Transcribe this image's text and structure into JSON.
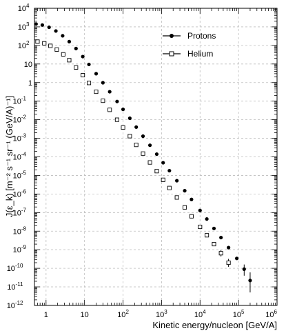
{
  "chart_data": {
    "type": "scatter",
    "title": "",
    "xlabel": "Kinetic energy/nucleon [GeV/A]",
    "ylabel": "J(ε_k) [m⁻² s⁻¹ sr⁻¹ (GeV/A)⁻¹]",
    "xscale": "log",
    "yscale": "log",
    "xlim": [
      0.5,
      1000000
    ],
    "ylim": [
      1e-12,
      10000
    ],
    "grid": true,
    "legend_position": "top-right",
    "x_tick_labels": [
      {
        "value": 1,
        "base": "1",
        "exp": ""
      },
      {
        "value": 10,
        "base": "10",
        "exp": ""
      },
      {
        "value": 100,
        "base": "10",
        "exp": "2"
      },
      {
        "value": 1000,
        "base": "10",
        "exp": "3"
      },
      {
        "value": 10000,
        "base": "10",
        "exp": "4"
      },
      {
        "value": 100000,
        "base": "10",
        "exp": "5"
      },
      {
        "value": 1000000,
        "base": "10",
        "exp": "6"
      }
    ],
    "y_tick_labels": [
      {
        "value": 10000,
        "base": "10",
        "exp": "4"
      },
      {
        "value": 1000,
        "base": "10",
        "exp": "3"
      },
      {
        "value": 100,
        "base": "10",
        "exp": "2"
      },
      {
        "value": 10,
        "base": "10",
        "exp": ""
      },
      {
        "value": 1,
        "base": "1",
        "exp": ""
      },
      {
        "value": 0.1,
        "base": "10",
        "exp": "-1"
      },
      {
        "value": 0.01,
        "base": "10",
        "exp": "-2"
      },
      {
        "value": 0.001,
        "base": "10",
        "exp": "-3"
      },
      {
        "value": 0.0001,
        "base": "10",
        "exp": "-4"
      },
      {
        "value": 1e-05,
        "base": "10",
        "exp": "-5"
      },
      {
        "value": 1e-06,
        "base": "10",
        "exp": "-6"
      },
      {
        "value": 1e-07,
        "base": "10",
        "exp": "-7"
      },
      {
        "value": 1e-08,
        "base": "10",
        "exp": "-8"
      },
      {
        "value": 1e-09,
        "base": "10",
        "exp": "-9"
      },
      {
        "value": 1e-10,
        "base": "10",
        "exp": "-10"
      },
      {
        "value": 1e-11,
        "base": "10",
        "exp": "-11"
      },
      {
        "value": 1e-12,
        "base": "10",
        "exp": "-12"
      }
    ],
    "series": [
      {
        "name": "Protons",
        "marker": "filled-circle",
        "color": "#000000",
        "curve": {
          "style": "solid-to-dashed",
          "x_dash_start": 200,
          "x_end": 700000
        },
        "flux_model": {
          "norm": 15000,
          "gamma": 2.7,
          "x0": 0.938,
          "cutoff": 3.2
        },
        "points": [
          {
            "x": 0.55,
            "y": 1420
          },
          {
            "x": 0.8,
            "y": 1250
          },
          {
            "x": 1.2,
            "y": 950
          },
          {
            "x": 1.8,
            "y": 600
          },
          {
            "x": 2.7,
            "y": 330
          },
          {
            "x": 4,
            "y": 160
          },
          {
            "x": 6,
            "y": 68
          },
          {
            "x": 9,
            "y": 25
          },
          {
            "x": 13,
            "y": 9.5
          },
          {
            "x": 20,
            "y": 3.0
          },
          {
            "x": 30,
            "y": 0.98
          },
          {
            "x": 45,
            "y": 0.32
          },
          {
            "x": 70,
            "y": 0.096
          },
          {
            "x": 100,
            "y": 0.036
          },
          {
            "x": 150,
            "y": 0.012
          },
          {
            "x": 220,
            "y": 0.004
          },
          {
            "x": 330,
            "y": 0.0013
          },
          {
            "x": 500,
            "y": 0.00042
          },
          {
            "x": 750,
            "y": 0.00014
          },
          {
            "x": 1100,
            "y": 4.8e-05
          },
          {
            "x": 1600,
            "y": 1.8e-05
          },
          {
            "x": 2500,
            "y": 5.2e-06
          },
          {
            "x": 4000,
            "y": 1.5e-06
          },
          {
            "x": 6000,
            "y": 5.1e-07
          },
          {
            "x": 10000,
            "y": 1.3e-07
          },
          {
            "x": 15000,
            "y": 4.5e-08
          },
          {
            "x": 23000,
            "y": 1.4e-08
          },
          {
            "x": 35000,
            "y": 4.5e-09
          },
          {
            "x": 55000,
            "y": 1.3e-09
          },
          {
            "x": 90000,
            "y": 3.4e-10
          },
          {
            "x": 140000,
            "y": 9e-11,
            "err_low": 4e-11,
            "err_high": 1.6e-10
          },
          {
            "x": 200000,
            "y": 2.2e-11,
            "err_low": 5e-12,
            "err_high": 6e-11
          }
        ]
      },
      {
        "name": "Helium",
        "marker": "open-square",
        "color": "#000000",
        "curve": {
          "style": "solid-to-dashed",
          "x_dash_start": 200,
          "x_end": 700000
        },
        "flux_model": {
          "norm": 700,
          "gamma": 2.65,
          "x0": 0.75,
          "cutoff": 2.3
        },
        "points": [
          {
            "x": 0.6,
            "y": 160
          },
          {
            "x": 0.9,
            "y": 130
          },
          {
            "x": 1.3,
            "y": 95
          },
          {
            "x": 1.9,
            "y": 60
          },
          {
            "x": 2.8,
            "y": 33
          },
          {
            "x": 4,
            "y": 16
          },
          {
            "x": 6,
            "y": 6.5
          },
          {
            "x": 9,
            "y": 2.5
          },
          {
            "x": 13,
            "y": 0.95
          },
          {
            "x": 20,
            "y": 0.32
          },
          {
            "x": 30,
            "y": 0.105
          },
          {
            "x": 45,
            "y": 0.034
          },
          {
            "x": 70,
            "y": 0.01
          },
          {
            "x": 100,
            "y": 0.0038
          },
          {
            "x": 150,
            "y": 0.0013
          },
          {
            "x": 220,
            "y": 0.00044
          },
          {
            "x": 330,
            "y": 0.00015
          },
          {
            "x": 500,
            "y": 5e-05
          },
          {
            "x": 750,
            "y": 1.7e-05
          },
          {
            "x": 1100,
            "y": 5.8e-06
          },
          {
            "x": 1600,
            "y": 2.1e-06
          },
          {
            "x": 2500,
            "y": 6.5e-07
          },
          {
            "x": 4000,
            "y": 1.9e-07
          },
          {
            "x": 6000,
            "y": 6.3e-08
          },
          {
            "x": 10000,
            "y": 1.7e-08
          },
          {
            "x": 15000,
            "y": 6e-09
          },
          {
            "x": 23000,
            "y": 2e-09
          },
          {
            "x": 35000,
            "y": 6.5e-10,
            "err_low": 4.3e-10,
            "err_high": 9.5e-10
          },
          {
            "x": 55000,
            "y": 2e-10,
            "err_low": 1.2e-10,
            "err_high": 3.2e-10
          }
        ]
      }
    ]
  }
}
